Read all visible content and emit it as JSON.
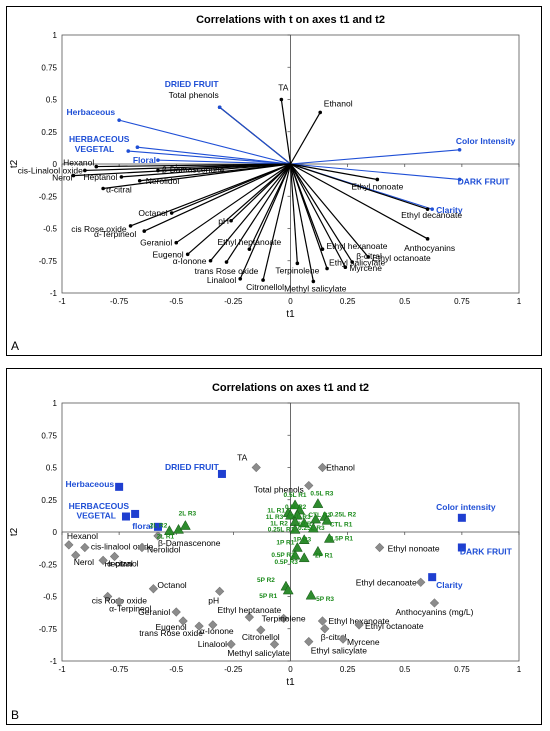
{
  "panelA": {
    "panel_label": "A",
    "chart_data": {
      "type": "scatter",
      "title": "Correlations with t on axes t1 and t2",
      "xlabel": "t1",
      "ylabel": "t2",
      "xlim": [
        -1,
        1
      ],
      "ylim": [
        -1,
        1
      ],
      "xticks": [
        "-1",
        "-0.75",
        "-0.5",
        "-0.25",
        "0",
        "0.25",
        "0.5",
        "0.75",
        "1"
      ],
      "yticks": [
        "1",
        "0.75",
        "0.5",
        "0.25",
        "0",
        "-0.25",
        "-0.5",
        "-0.75",
        "-1"
      ],
      "black_color": "#000000",
      "blue_color": "#1f4fd6",
      "points": [
        {
          "label": "Total phenols",
          "x": -0.31,
          "y": 0.44,
          "color": "black"
        },
        {
          "label": "TA",
          "x": -0.04,
          "y": 0.5,
          "color": "black"
        },
        {
          "label": "Ethanol",
          "x": 0.13,
          "y": 0.4,
          "color": "black"
        },
        {
          "label": "DRIED FRUIT",
          "x": -0.31,
          "y": 0.44,
          "color": "blue"
        },
        {
          "label": "Herbaceous",
          "x": -0.75,
          "y": 0.34,
          "color": "blue"
        },
        {
          "label": "HERBACEOUS",
          "x": -0.67,
          "y": 0.13,
          "color": "blue"
        },
        {
          "label": "VEGETAL",
          "x": -0.71,
          "y": 0.1,
          "color": "blue"
        },
        {
          "label": "Floral",
          "x": -0.58,
          "y": 0.03,
          "color": "blue"
        },
        {
          "label": "Color Intensity",
          "x": 0.74,
          "y": 0.11,
          "color": "blue"
        },
        {
          "label": "DARK FRUIT",
          "x": 0.74,
          "y": -0.12,
          "color": "blue"
        },
        {
          "label": "Clarity",
          "x": 0.62,
          "y": -0.35,
          "color": "blue"
        },
        {
          "label": "Hexanol",
          "x": -0.85,
          "y": -0.02,
          "color": "black"
        },
        {
          "label": "cis-Linalool oxide",
          "x": -0.9,
          "y": -0.05,
          "color": "black"
        },
        {
          "label": "Nerol",
          "x": -0.95,
          "y": -0.09,
          "color": "black"
        },
        {
          "label": "β-Damascenone",
          "x": -0.58,
          "y": -0.05,
          "color": "black"
        },
        {
          "label": "Heptanol",
          "x": -0.74,
          "y": -0.1,
          "color": "black"
        },
        {
          "label": "Nerolidol",
          "x": -0.66,
          "y": -0.13,
          "color": "black"
        },
        {
          "label": "α-citral",
          "x": -0.82,
          "y": -0.19,
          "color": "black"
        },
        {
          "label": "Octanol",
          "x": -0.52,
          "y": -0.38,
          "color": "black"
        },
        {
          "label": "pH",
          "x": -0.26,
          "y": -0.44,
          "color": "black"
        },
        {
          "label": "cis Rose oxide",
          "x": -0.7,
          "y": -0.48,
          "color": "black"
        },
        {
          "label": "α-Terpineol",
          "x": -0.64,
          "y": -0.52,
          "color": "black"
        },
        {
          "label": "Geraniol",
          "x": -0.5,
          "y": -0.61,
          "color": "black"
        },
        {
          "label": "Eugenol",
          "x": -0.45,
          "y": -0.7,
          "color": "black"
        },
        {
          "label": "α-Ionone",
          "x": -0.35,
          "y": -0.75,
          "color": "black"
        },
        {
          "label": "trans Rose oxide",
          "x": -0.28,
          "y": -0.76,
          "color": "black"
        },
        {
          "label": "Ethyl heptanoate",
          "x": -0.18,
          "y": -0.66,
          "color": "black"
        },
        {
          "label": "Linalool",
          "x": -0.22,
          "y": -0.89,
          "color": "black"
        },
        {
          "label": "Citronellol",
          "x": -0.12,
          "y": -0.9,
          "color": "black"
        },
        {
          "label": "Terpinolene",
          "x": 0.03,
          "y": -0.77,
          "color": "black"
        },
        {
          "label": "Ethyl hexanoate",
          "x": 0.14,
          "y": -0.66,
          "color": "black"
        },
        {
          "label": "β-citral",
          "x": 0.27,
          "y": -0.76,
          "color": "black"
        },
        {
          "label": "Myrcene",
          "x": 0.24,
          "y": -0.8,
          "color": "black"
        },
        {
          "label": "Ethyl salicylate",
          "x": 0.16,
          "y": -0.81,
          "color": "black"
        },
        {
          "label": "Methyl salicylate",
          "x": 0.1,
          "y": -0.91,
          "color": "black"
        },
        {
          "label": "Ethyl octanoate",
          "x": 0.34,
          "y": -0.72,
          "color": "black"
        },
        {
          "label": "Ethyl nonoate",
          "x": 0.38,
          "y": -0.12,
          "color": "black"
        },
        {
          "label": "Ethyl decanoate",
          "x": 0.6,
          "y": -0.35,
          "color": "black"
        },
        {
          "label": "Anthocyanins",
          "x": 0.6,
          "y": -0.58,
          "color": "black"
        }
      ]
    }
  },
  "panelB": {
    "panel_label": "B",
    "chart_data": {
      "type": "scatter",
      "title": "Correlations on axes t1 and t2",
      "xlabel": "t1",
      "ylabel": "t2",
      "xlim": [
        -1,
        1
      ],
      "ylim": [
        -1,
        1
      ],
      "xticks": [
        "-1",
        "-0.75",
        "-0.5",
        "-0.25",
        "0",
        "0.25",
        "0.5",
        "0.75",
        "1"
      ],
      "yticks": [
        "1",
        "0.75",
        "0.5",
        "0.25",
        "0",
        "-0.25",
        "-0.5",
        "-0.75",
        "-1"
      ],
      "gray_color": "#8c8c8c",
      "blue_color": "#1f3fd0",
      "green_color": "#2e8b2e",
      "variables": [
        {
          "label": "TA",
          "x": -0.15,
          "y": 0.5
        },
        {
          "label": "Ethanol",
          "x": 0.14,
          "y": 0.5
        },
        {
          "label": "Total phenols",
          "x": 0.08,
          "y": 0.36
        },
        {
          "label": "Hexanol",
          "x": -0.97,
          "y": -0.1
        },
        {
          "label": "cis-linalool oxide",
          "x": -0.9,
          "y": -0.12
        },
        {
          "label": "Nerol",
          "x": -0.94,
          "y": -0.18
        },
        {
          "label": "Heptanol",
          "x": -0.77,
          "y": -0.19
        },
        {
          "label": "Nerolidol",
          "x": -0.65,
          "y": -0.12
        },
        {
          "label": "α-citral",
          "x": -0.82,
          "y": -0.22
        },
        {
          "label": "β-Damascenone",
          "x": -0.58,
          "y": -0.03
        },
        {
          "label": "Octanol",
          "x": -0.6,
          "y": -0.44
        },
        {
          "label": "pH",
          "x": -0.31,
          "y": -0.46
        },
        {
          "label": "cis Rose oxide",
          "x": -0.8,
          "y": -0.5
        },
        {
          "label": "α-Terpineol",
          "x": -0.75,
          "y": -0.54
        },
        {
          "label": "Geraniol",
          "x": -0.5,
          "y": -0.62
        },
        {
          "label": "Eugenol",
          "x": -0.47,
          "y": -0.69
        },
        {
          "label": "trans Rose oxide",
          "x": -0.4,
          "y": -0.73
        },
        {
          "label": "α-Ionone",
          "x": -0.34,
          "y": -0.72
        },
        {
          "label": "Ethyl heptanoate",
          "x": -0.18,
          "y": -0.66
        },
        {
          "label": "Terpinolene",
          "x": -0.03,
          "y": -0.67
        },
        {
          "label": "Citronellol",
          "x": -0.13,
          "y": -0.76
        },
        {
          "label": "Linalool",
          "x": -0.26,
          "y": -0.87
        },
        {
          "label": "Methyl salicylate",
          "x": -0.07,
          "y": -0.87
        },
        {
          "label": "Ethyl salicylate",
          "x": 0.08,
          "y": -0.85
        },
        {
          "label": "Ethyl hexanoate",
          "x": 0.14,
          "y": -0.69
        },
        {
          "label": "β-citral",
          "x": 0.15,
          "y": -0.75
        },
        {
          "label": "Myrcene",
          "x": 0.23,
          "y": -0.83
        },
        {
          "label": "Ethyl octanoate",
          "x": 0.3,
          "y": -0.72
        },
        {
          "label": "Ethyl nonoate",
          "x": 0.39,
          "y": -0.12
        },
        {
          "label": "Ethyl decanoate",
          "x": 0.57,
          "y": -0.39
        },
        {
          "label": "Anthocyanins (mg/L)",
          "x": 0.63,
          "y": -0.55
        }
      ],
      "attributes": [
        {
          "label": "DRIED FRUIT",
          "x": -0.3,
          "y": 0.45
        },
        {
          "label": "Herbaceous",
          "x": -0.75,
          "y": 0.35
        },
        {
          "label": "HERBACEOUS",
          "x": -0.68,
          "y": 0.14
        },
        {
          "label": "VEGETAL",
          "x": -0.72,
          "y": 0.12
        },
        {
          "label": "floral",
          "x": -0.58,
          "y": 0.04
        },
        {
          "label": "Color intensity",
          "x": 0.75,
          "y": 0.11
        },
        {
          "label": "DARK FRUIT",
          "x": 0.75,
          "y": -0.12
        },
        {
          "label": "Clarity",
          "x": 0.62,
          "y": -0.35
        }
      ],
      "samples": [
        {
          "label": "2L R2",
          "x": -0.49,
          "y": 0.02
        },
        {
          "label": "2L R1",
          "x": -0.53,
          "y": 0.01
        },
        {
          "label": "2L R3",
          "x": -0.46,
          "y": 0.05
        },
        {
          "label": "0.5L R1",
          "x": 0.02,
          "y": 0.21
        },
        {
          "label": "0.5L R3",
          "x": 0.12,
          "y": 0.22
        },
        {
          "label": "0.5LR2",
          "x": 0.04,
          "y": 0.17
        },
        {
          "label": "1L R1",
          "x": -0.01,
          "y": 0.15
        },
        {
          "label": "1L R3",
          "x": 0.0,
          "y": 0.13
        },
        {
          "label": "CTL R3",
          "x": 0.03,
          "y": 0.13
        },
        {
          "label": "0.25L R2",
          "x": 0.15,
          "y": 0.12
        },
        {
          "label": "1L R2",
          "x": 0.02,
          "y": 0.08
        },
        {
          "label": "2P R2",
          "x": 0.06,
          "y": 0.07
        },
        {
          "label": "CTL R2",
          "x": 0.11,
          "y": 0.1
        },
        {
          "label": "CTL R1",
          "x": 0.16,
          "y": 0.09
        },
        {
          "label": "0.25L R1",
          "x": 0.02,
          "y": 0.02
        },
        {
          "label": "0.25L R3",
          "x": 0.1,
          "y": 0.03
        },
        {
          "label": "1P R3",
          "x": 0.06,
          "y": -0.06
        },
        {
          "label": "0.5P R1",
          "x": 0.17,
          "y": -0.05
        },
        {
          "label": "1P R1",
          "x": 0.03,
          "y": -0.12
        },
        {
          "label": "2P R1",
          "x": 0.12,
          "y": -0.15
        },
        {
          "label": "0.5P R2",
          "x": 0.02,
          "y": -0.18
        },
        {
          "label": "0.5P R3",
          "x": 0.06,
          "y": -0.2
        },
        {
          "label": "5P R2",
          "x": -0.02,
          "y": -0.42
        },
        {
          "label": "5P R1",
          "x": -0.01,
          "y": -0.45
        },
        {
          "label": "5P R3",
          "x": 0.09,
          "y": -0.49
        }
      ]
    }
  }
}
